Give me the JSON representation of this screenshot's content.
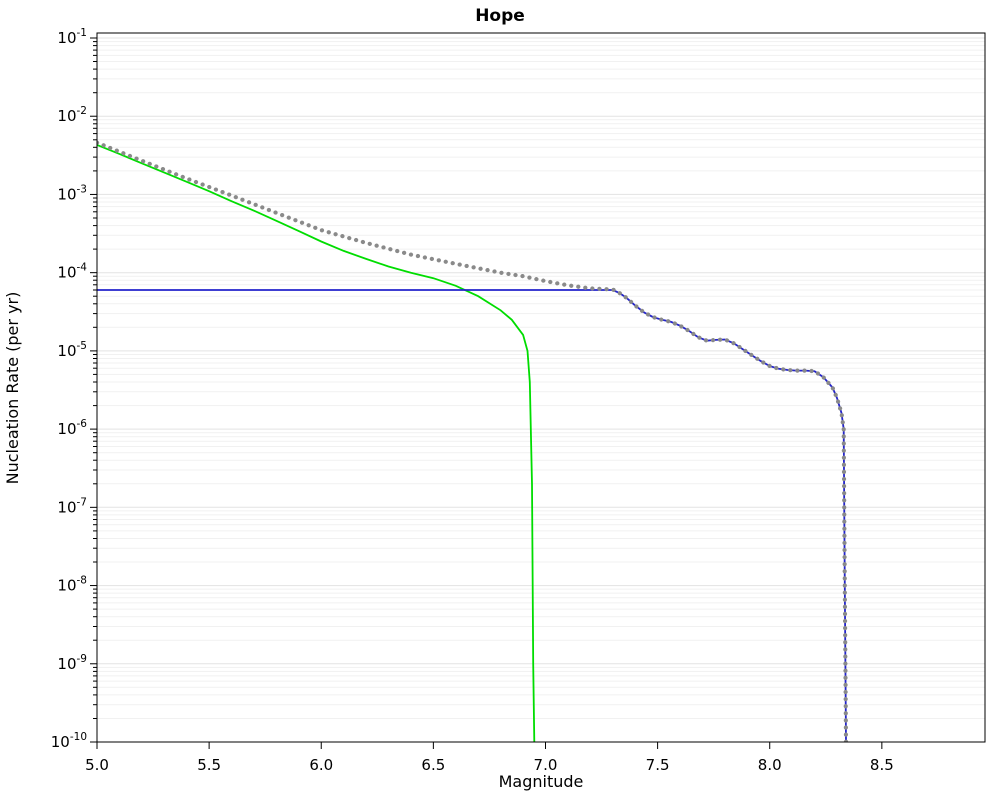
{
  "chart_data": {
    "type": "line",
    "title": "Hope",
    "xlabel": "Magnitude",
    "ylabel": "Nucleation Rate (per yr)",
    "legend": "none",
    "grid": {
      "horizontal_major": true,
      "horizontal_minor": true,
      "vertical": false
    },
    "x_axis": {
      "min": 5.0,
      "max": 8.96,
      "ticks": [
        5.0,
        5.5,
        6.0,
        6.5,
        7.0,
        7.5,
        8.0,
        8.5
      ]
    },
    "y_axis": {
      "scale": "log",
      "min_exp": -10,
      "max_exp": -1,
      "tick_labels": [
        "10^-1",
        "10^-2",
        "10^-3",
        "10^-4",
        "10^-5",
        "10^-6",
        "10^-7",
        "10^-8",
        "10^-9",
        "10^-10"
      ]
    },
    "series": [
      {
        "name": "green-curve",
        "color": "#00dd00",
        "style": "solid",
        "width": 1.8,
        "points": [
          [
            5.0,
            0.0043
          ],
          [
            5.1,
            0.0033
          ],
          [
            5.2,
            0.0025
          ],
          [
            5.3,
            0.0019
          ],
          [
            5.4,
            0.00145
          ],
          [
            5.5,
            0.0011
          ],
          [
            5.6,
            0.00082
          ],
          [
            5.7,
            0.00062
          ],
          [
            5.8,
            0.00046
          ],
          [
            5.9,
            0.00034
          ],
          [
            6.0,
            0.00025
          ],
          [
            6.1,
            0.00019
          ],
          [
            6.2,
            0.00015
          ],
          [
            6.3,
            0.00012
          ],
          [
            6.4,
            0.0001
          ],
          [
            6.5,
            8.5e-05
          ],
          [
            6.6,
            6.8e-05
          ],
          [
            6.7,
            5e-05
          ],
          [
            6.8,
            3.3e-05
          ],
          [
            6.85,
            2.5e-05
          ],
          [
            6.9,
            1.6e-05
          ],
          [
            6.92,
            1e-05
          ],
          [
            6.93,
            4e-06
          ],
          [
            6.94,
            2e-07
          ],
          [
            6.945,
            1e-09
          ],
          [
            6.95,
            1e-10
          ]
        ]
      },
      {
        "name": "blue-curve",
        "color": "#2323cc",
        "style": "solid",
        "width": 1.8,
        "points": [
          [
            5.0,
            6e-05
          ],
          [
            7.3,
            6e-05
          ],
          [
            7.33,
            5.5e-05
          ],
          [
            7.36,
            4.8e-05
          ],
          [
            7.4,
            3.8e-05
          ],
          [
            7.44,
            3.1e-05
          ],
          [
            7.48,
            2.7e-05
          ],
          [
            7.52,
            2.5e-05
          ],
          [
            7.56,
            2.35e-05
          ],
          [
            7.6,
            2.1e-05
          ],
          [
            7.64,
            1.8e-05
          ],
          [
            7.68,
            1.5e-05
          ],
          [
            7.72,
            1.35e-05
          ],
          [
            7.76,
            1.38e-05
          ],
          [
            7.8,
            1.4e-05
          ],
          [
            7.84,
            1.25e-05
          ],
          [
            7.88,
            1.05e-05
          ],
          [
            7.92,
            8.8e-06
          ],
          [
            7.96,
            7.4e-06
          ],
          [
            8.0,
            6.4e-06
          ],
          [
            8.04,
            5.9e-06
          ],
          [
            8.08,
            5.7e-06
          ],
          [
            8.12,
            5.6e-06
          ],
          [
            8.16,
            5.6e-06
          ],
          [
            8.2,
            5.5e-06
          ],
          [
            8.24,
            4.6e-06
          ],
          [
            8.28,
            3.4e-06
          ],
          [
            8.3,
            2.5e-06
          ],
          [
            8.32,
            1.6e-06
          ],
          [
            8.33,
            1e-06
          ],
          [
            8.335,
            1e-08
          ],
          [
            8.34,
            1e-10
          ]
        ]
      },
      {
        "name": "gray-dotted-curve",
        "color": "#8a8a8a",
        "style": "dotted",
        "width": 4.2,
        "points": [
          [
            5.0,
            0.0046
          ],
          [
            5.2,
            0.0027
          ],
          [
            5.4,
            0.0016
          ],
          [
            5.6,
            0.00097
          ],
          [
            5.8,
            0.00058
          ],
          [
            6.0,
            0.00035
          ],
          [
            6.2,
            0.00024
          ],
          [
            6.4,
            0.00017
          ],
          [
            6.6,
            0.00013
          ],
          [
            6.8,
            0.0001
          ],
          [
            6.9,
            9e-05
          ],
          [
            7.0,
            7.8e-05
          ],
          [
            7.1,
            6.9e-05
          ],
          [
            7.2,
            6.3e-05
          ],
          [
            7.3,
            6.1e-05
          ],
          [
            7.33,
            5.5e-05
          ],
          [
            7.36,
            4.8e-05
          ],
          [
            7.4,
            3.8e-05
          ],
          [
            7.44,
            3.1e-05
          ],
          [
            7.48,
            2.7e-05
          ],
          [
            7.52,
            2.5e-05
          ],
          [
            7.56,
            2.35e-05
          ],
          [
            7.6,
            2.1e-05
          ],
          [
            7.64,
            1.8e-05
          ],
          [
            7.68,
            1.5e-05
          ],
          [
            7.72,
            1.35e-05
          ],
          [
            7.76,
            1.38e-05
          ],
          [
            7.8,
            1.4e-05
          ],
          [
            7.84,
            1.25e-05
          ],
          [
            7.88,
            1.05e-05
          ],
          [
            7.92,
            8.8e-06
          ],
          [
            7.96,
            7.4e-06
          ],
          [
            8.0,
            6.4e-06
          ],
          [
            8.04,
            5.9e-06
          ],
          [
            8.08,
            5.7e-06
          ],
          [
            8.12,
            5.6e-06
          ],
          [
            8.16,
            5.6e-06
          ],
          [
            8.2,
            5.5e-06
          ],
          [
            8.24,
            4.6e-06
          ],
          [
            8.28,
            3.4e-06
          ],
          [
            8.3,
            2.5e-06
          ],
          [
            8.32,
            1.6e-06
          ],
          [
            8.33,
            1e-06
          ],
          [
            8.335,
            1e-08
          ],
          [
            8.34,
            1e-10
          ]
        ]
      }
    ]
  }
}
